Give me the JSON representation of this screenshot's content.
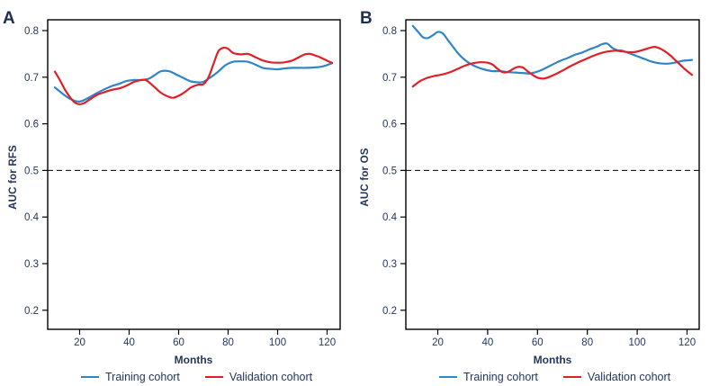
{
  "chart_data": [
    {
      "type": "line",
      "panel_letter": "A",
      "xlabel": "Months",
      "ylabel": "AUC for RFS",
      "x_ticks": [
        20,
        40,
        60,
        80,
        100,
        120
      ],
      "y_ticks": [
        0.8,
        0.7,
        0.6,
        0.5,
        0.4,
        0.3,
        0.2
      ],
      "xlim": [
        7,
        125
      ],
      "ylim": [
        0.16,
        0.82
      ],
      "reference_line_y": 0.5,
      "grid": false,
      "legend_position": "bottom",
      "series": [
        {
          "name": "Training cohort",
          "color": "#2e86c7",
          "points": [
            [
              10,
              0.678
            ],
            [
              13,
              0.665
            ],
            [
              16,
              0.654
            ],
            [
              19,
              0.648
            ],
            [
              21,
              0.649
            ],
            [
              24,
              0.657
            ],
            [
              27,
              0.666
            ],
            [
              30,
              0.674
            ],
            [
              33,
              0.681
            ],
            [
              36,
              0.686
            ],
            [
              39,
              0.692
            ],
            [
              42,
              0.694
            ],
            [
              45,
              0.694
            ],
            [
              48,
              0.697
            ],
            [
              51,
              0.707
            ],
            [
              53,
              0.713
            ],
            [
              56,
              0.713
            ],
            [
              59,
              0.706
            ],
            [
              62,
              0.698
            ],
            [
              65,
              0.691
            ],
            [
              68,
              0.689
            ],
            [
              70,
              0.69
            ],
            [
              73,
              0.7
            ],
            [
              76,
              0.712
            ],
            [
              79,
              0.726
            ],
            [
              82,
              0.733
            ],
            [
              85,
              0.734
            ],
            [
              88,
              0.733
            ],
            [
              91,
              0.727
            ],
            [
              94,
              0.72
            ],
            [
              97,
              0.718
            ],
            [
              100,
              0.717
            ],
            [
              103,
              0.719
            ],
            [
              106,
              0.72
            ],
            [
              109,
              0.72
            ],
            [
              112,
              0.72
            ],
            [
              115,
              0.721
            ],
            [
              118,
              0.723
            ],
            [
              120,
              0.726
            ],
            [
              122,
              0.73
            ]
          ]
        },
        {
          "name": "Validation cohort",
          "color": "#e01f26",
          "points": [
            [
              10,
              0.712
            ],
            [
              12,
              0.694
            ],
            [
              14,
              0.674
            ],
            [
              16,
              0.658
            ],
            [
              18,
              0.646
            ],
            [
              20,
              0.642
            ],
            [
              22,
              0.645
            ],
            [
              24,
              0.652
            ],
            [
              27,
              0.662
            ],
            [
              30,
              0.668
            ],
            [
              33,
              0.673
            ],
            [
              36,
              0.676
            ],
            [
              39,
              0.682
            ],
            [
              42,
              0.69
            ],
            [
              45,
              0.694
            ],
            [
              47,
              0.693
            ],
            [
              50,
              0.68
            ],
            [
              53,
              0.666
            ],
            [
              56,
              0.658
            ],
            [
              58,
              0.656
            ],
            [
              61,
              0.663
            ],
            [
              63,
              0.67
            ],
            [
              65,
              0.678
            ],
            [
              68,
              0.684
            ],
            [
              70,
              0.685
            ],
            [
              72,
              0.699
            ],
            [
              74,
              0.727
            ],
            [
              76,
              0.755
            ],
            [
              78,
              0.763
            ],
            [
              80,
              0.761
            ],
            [
              82,
              0.752
            ],
            [
              85,
              0.749
            ],
            [
              88,
              0.75
            ],
            [
              91,
              0.743
            ],
            [
              94,
              0.736
            ],
            [
              97,
              0.732
            ],
            [
              100,
              0.731
            ],
            [
              103,
              0.732
            ],
            [
              106,
              0.736
            ],
            [
              109,
              0.744
            ],
            [
              111,
              0.749
            ],
            [
              113,
              0.75
            ],
            [
              115,
              0.747
            ],
            [
              117,
              0.743
            ],
            [
              119,
              0.738
            ],
            [
              121,
              0.733
            ],
            [
              122,
              0.731
            ]
          ]
        }
      ]
    },
    {
      "type": "line",
      "panel_letter": "B",
      "xlabel": "Months",
      "ylabel": "AUC for OS",
      "x_ticks": [
        20,
        40,
        60,
        80,
        100,
        120
      ],
      "y_ticks": [
        0.8,
        0.7,
        0.6,
        0.5,
        0.4,
        0.3,
        0.2
      ],
      "xlim": [
        7,
        125
      ],
      "ylim": [
        0.16,
        0.82
      ],
      "reference_line_y": 0.5,
      "grid": false,
      "legend_position": "bottom",
      "series": [
        {
          "name": "Training cohort",
          "color": "#2e86c7",
          "points": [
            [
              10,
              0.81
            ],
            [
              12,
              0.798
            ],
            [
              14,
              0.786
            ],
            [
              16,
              0.784
            ],
            [
              18,
              0.79
            ],
            [
              20,
              0.797
            ],
            [
              22,
              0.794
            ],
            [
              24,
              0.78
            ],
            [
              26,
              0.766
            ],
            [
              28,
              0.752
            ],
            [
              30,
              0.741
            ],
            [
              33,
              0.729
            ],
            [
              36,
              0.721
            ],
            [
              39,
              0.716
            ],
            [
              42,
              0.713
            ],
            [
              45,
              0.713
            ],
            [
              48,
              0.711
            ],
            [
              51,
              0.71
            ],
            [
              54,
              0.709
            ],
            [
              57,
              0.708
            ],
            [
              60,
              0.712
            ],
            [
              63,
              0.719
            ],
            [
              66,
              0.727
            ],
            [
              69,
              0.735
            ],
            [
              72,
              0.741
            ],
            [
              75,
              0.748
            ],
            [
              78,
              0.753
            ],
            [
              81,
              0.76
            ],
            [
              84,
              0.766
            ],
            [
              86,
              0.771
            ],
            [
              88,
              0.772
            ],
            [
              90,
              0.763
            ],
            [
              92,
              0.758
            ],
            [
              94,
              0.757
            ],
            [
              97,
              0.751
            ],
            [
              100,
              0.745
            ],
            [
              103,
              0.739
            ],
            [
              106,
              0.733
            ],
            [
              109,
              0.73
            ],
            [
              112,
              0.729
            ],
            [
              115,
              0.731
            ],
            [
              118,
              0.735
            ],
            [
              120,
              0.736
            ],
            [
              122,
              0.737
            ]
          ]
        },
        {
          "name": "Validation cohort",
          "color": "#e01f26",
          "points": [
            [
              10,
              0.68
            ],
            [
              13,
              0.692
            ],
            [
              16,
              0.699
            ],
            [
              19,
              0.703
            ],
            [
              22,
              0.706
            ],
            [
              25,
              0.711
            ],
            [
              28,
              0.718
            ],
            [
              31,
              0.725
            ],
            [
              34,
              0.73
            ],
            [
              37,
              0.732
            ],
            [
              40,
              0.731
            ],
            [
              42,
              0.727
            ],
            [
              44,
              0.718
            ],
            [
              46,
              0.711
            ],
            [
              48,
              0.711
            ],
            [
              50,
              0.717
            ],
            [
              52,
              0.722
            ],
            [
              54,
              0.721
            ],
            [
              56,
              0.713
            ],
            [
              58,
              0.705
            ],
            [
              60,
              0.699
            ],
            [
              62,
              0.697
            ],
            [
              64,
              0.699
            ],
            [
              67,
              0.706
            ],
            [
              70,
              0.714
            ],
            [
              73,
              0.723
            ],
            [
              76,
              0.731
            ],
            [
              79,
              0.738
            ],
            [
              82,
              0.745
            ],
            [
              85,
              0.751
            ],
            [
              88,
              0.755
            ],
            [
              91,
              0.757
            ],
            [
              93,
              0.756
            ],
            [
              96,
              0.754
            ],
            [
              99,
              0.754
            ],
            [
              102,
              0.758
            ],
            [
              105,
              0.763
            ],
            [
              107,
              0.765
            ],
            [
              109,
              0.762
            ],
            [
              111,
              0.756
            ],
            [
              113,
              0.748
            ],
            [
              115,
              0.738
            ],
            [
              117,
              0.728
            ],
            [
              119,
              0.718
            ],
            [
              121,
              0.709
            ],
            [
              122,
              0.705
            ]
          ]
        }
      ]
    }
  ]
}
